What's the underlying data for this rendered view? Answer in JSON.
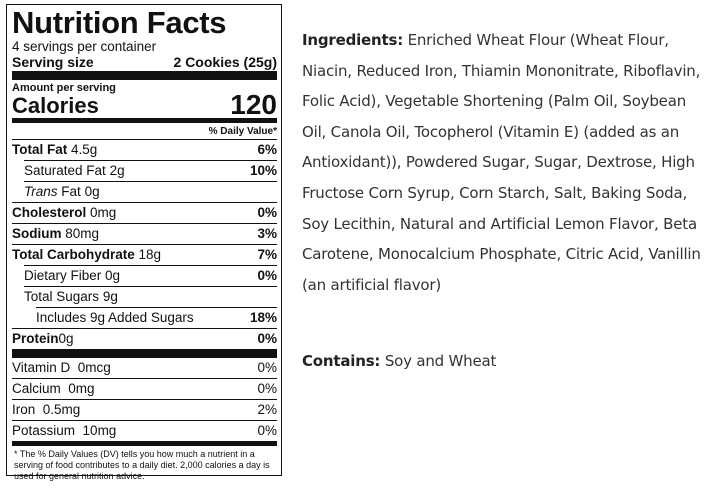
{
  "label": {
    "title": "Nutrition Facts",
    "servings_per_container": "4 servings per container",
    "serving_size_label": "Serving size",
    "serving_size_value": "2 Cookies (25g)",
    "amount_per_serving": "Amount per serving",
    "calories_label": "Calories",
    "calories_value": "120",
    "daily_value_header": "% Daily Value*",
    "total_fat": {
      "name": "Total Fat",
      "amount": "4.5g",
      "pct": "6%"
    },
    "saturated_fat": {
      "name": "Saturated Fat",
      "amount": "2g",
      "pct": "10%"
    },
    "trans_fat": {
      "name_italic": "Trans",
      "name": "Fat",
      "amount": "0g"
    },
    "cholesterol": {
      "name": "Cholesterol",
      "amount": "0mg",
      "pct": "0%"
    },
    "sodium": {
      "name": "Sodium",
      "amount": "80mg",
      "pct": "3%"
    },
    "total_carbohydrate": {
      "name": "Total Carbohydrate",
      "amount": "18g",
      "pct": "7%"
    },
    "dietary_fiber": {
      "name": "Dietary Fiber",
      "amount": "0g",
      "pct": "0%"
    },
    "total_sugars": {
      "name": "Total Sugars",
      "amount": "9g"
    },
    "added_sugars": {
      "text": "Includes 9g Added Sugars",
      "pct": "18%"
    },
    "protein": {
      "name": "Protein",
      "amount": "0g",
      "pct": "0%"
    },
    "vitamins": [
      {
        "name": "Vitamin D",
        "amount": "0mcg",
        "pct": "0%"
      },
      {
        "name": "Calcium",
        "amount": "0mg",
        "pct": "0%"
      },
      {
        "name": "Iron",
        "amount": "0.5mg",
        "pct": "2%"
      },
      {
        "name": "Potassium",
        "amount": "10mg",
        "pct": "0%"
      }
    ],
    "footnote": "* The % Daily Values (DV) tells you how much a nutrient in a serving of food contributes to a daily diet. 2,000 calories a day is used for general nutrition advice."
  },
  "ingredients": {
    "heading": "Ingredients:",
    "text": "Enriched Wheat Flour (Wheat Flour, Niacin, Reduced Iron, Thiamin Mononitrate, Riboflavin, Folic Acid), Vegetable Shortening (Palm Oil, Soybean Oil, Canola Oil, Tocopherol (Vitamin E) (added as an Antioxidant)), Powdered Sugar, Sugar, Dextrose, High Fructose Corn Syrup, Corn Starch, Salt, Baking Soda, Soy Lecithin, Natural and Artificial Lemon Flavor, Beta Carotene, Monocalcium Phosphate,   Citric Acid, Vanillin (an artificial flavor)"
  },
  "contains": {
    "heading": "Contains:",
    "text": "Soy and Wheat"
  }
}
